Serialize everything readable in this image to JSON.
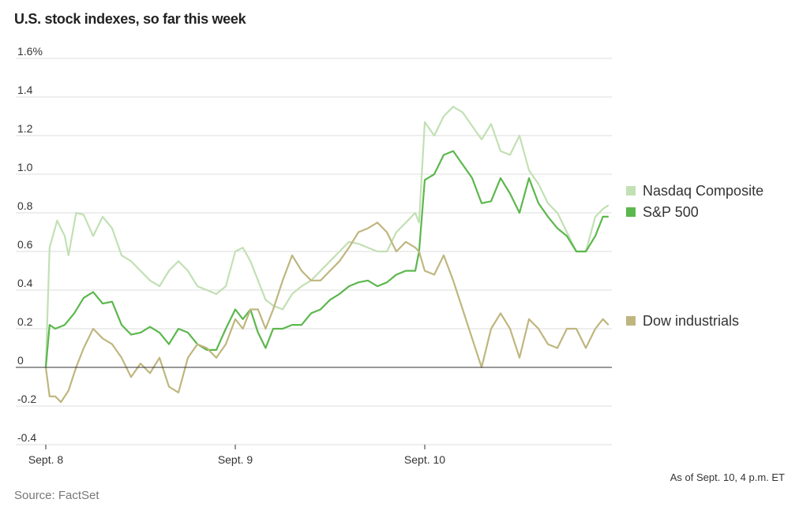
{
  "chart_data": {
    "type": "line",
    "title": "U.S. stock indexes, so far this week",
    "y_unit": "%",
    "ylim": [
      -0.4,
      1.6
    ],
    "y_ticks": [
      -0.4,
      -0.2,
      0,
      0.2,
      0.4,
      0.6,
      0.8,
      1.0,
      1.2,
      1.4,
      1.6
    ],
    "y_tick_labels": [
      "-0.4",
      "-0.2",
      "0",
      "0.2",
      "0.4",
      "0.6",
      "0.8",
      "1.0",
      "1.2",
      "1.4",
      "1.6%"
    ],
    "x_tick_labels": [
      "Sept. 8",
      "Sept. 9",
      "Sept. 10"
    ],
    "x_range_days": [
      0,
      3
    ],
    "legend_placement": "right",
    "series": [
      {
        "name": "Nasdaq Composite",
        "color": "#c2e0b4",
        "points": [
          [
            0.0,
            0.0
          ],
          [
            0.02,
            0.62
          ],
          [
            0.06,
            0.76
          ],
          [
            0.1,
            0.68
          ],
          [
            0.12,
            0.58
          ],
          [
            0.16,
            0.8
          ],
          [
            0.2,
            0.79
          ],
          [
            0.25,
            0.68
          ],
          [
            0.3,
            0.78
          ],
          [
            0.35,
            0.72
          ],
          [
            0.4,
            0.58
          ],
          [
            0.45,
            0.55
          ],
          [
            0.5,
            0.5
          ],
          [
            0.55,
            0.45
          ],
          [
            0.6,
            0.42
          ],
          [
            0.65,
            0.5
          ],
          [
            0.7,
            0.55
          ],
          [
            0.75,
            0.5
          ],
          [
            0.8,
            0.42
          ],
          [
            0.85,
            0.4
          ],
          [
            0.9,
            0.38
          ],
          [
            0.95,
            0.42
          ],
          [
            1.0,
            0.6
          ],
          [
            1.04,
            0.62
          ],
          [
            1.08,
            0.55
          ],
          [
            1.12,
            0.45
          ],
          [
            1.16,
            0.35
          ],
          [
            1.2,
            0.32
          ],
          [
            1.25,
            0.3
          ],
          [
            1.3,
            0.38
          ],
          [
            1.35,
            0.42
          ],
          [
            1.4,
            0.45
          ],
          [
            1.45,
            0.5
          ],
          [
            1.5,
            0.55
          ],
          [
            1.55,
            0.6
          ],
          [
            1.6,
            0.65
          ],
          [
            1.65,
            0.64
          ],
          [
            1.7,
            0.62
          ],
          [
            1.75,
            0.6
          ],
          [
            1.8,
            0.6
          ],
          [
            1.85,
            0.7
          ],
          [
            1.9,
            0.75
          ],
          [
            1.95,
            0.8
          ],
          [
            1.97,
            0.75
          ],
          [
            2.0,
            1.27
          ],
          [
            2.05,
            1.2
          ],
          [
            2.1,
            1.3
          ],
          [
            2.15,
            1.35
          ],
          [
            2.2,
            1.32
          ],
          [
            2.25,
            1.25
          ],
          [
            2.3,
            1.18
          ],
          [
            2.35,
            1.26
          ],
          [
            2.4,
            1.12
          ],
          [
            2.45,
            1.1
          ],
          [
            2.5,
            1.2
          ],
          [
            2.55,
            1.02
          ],
          [
            2.6,
            0.95
          ],
          [
            2.65,
            0.85
          ],
          [
            2.7,
            0.8
          ],
          [
            2.75,
            0.7
          ],
          [
            2.8,
            0.6
          ],
          [
            2.85,
            0.6
          ],
          [
            2.9,
            0.78
          ],
          [
            2.94,
            0.82
          ],
          [
            2.97,
            0.84
          ]
        ]
      },
      {
        "name": "S&P 500",
        "color": "#5cb74d",
        "points": [
          [
            0.0,
            0.0
          ],
          [
            0.02,
            0.22
          ],
          [
            0.05,
            0.2
          ],
          [
            0.1,
            0.22
          ],
          [
            0.15,
            0.28
          ],
          [
            0.2,
            0.36
          ],
          [
            0.25,
            0.39
          ],
          [
            0.3,
            0.33
          ],
          [
            0.35,
            0.34
          ],
          [
            0.4,
            0.22
          ],
          [
            0.45,
            0.17
          ],
          [
            0.5,
            0.18
          ],
          [
            0.55,
            0.21
          ],
          [
            0.6,
            0.18
          ],
          [
            0.65,
            0.12
          ],
          [
            0.7,
            0.2
          ],
          [
            0.75,
            0.18
          ],
          [
            0.8,
            0.12
          ],
          [
            0.85,
            0.09
          ],
          [
            0.9,
            0.09
          ],
          [
            0.95,
            0.2
          ],
          [
            1.0,
            0.3
          ],
          [
            1.04,
            0.25
          ],
          [
            1.08,
            0.3
          ],
          [
            1.12,
            0.18
          ],
          [
            1.16,
            0.1
          ],
          [
            1.2,
            0.2
          ],
          [
            1.25,
            0.2
          ],
          [
            1.3,
            0.22
          ],
          [
            1.35,
            0.22
          ],
          [
            1.4,
            0.28
          ],
          [
            1.45,
            0.3
          ],
          [
            1.5,
            0.35
          ],
          [
            1.55,
            0.38
          ],
          [
            1.6,
            0.42
          ],
          [
            1.65,
            0.44
          ],
          [
            1.7,
            0.45
          ],
          [
            1.75,
            0.42
          ],
          [
            1.8,
            0.44
          ],
          [
            1.85,
            0.48
          ],
          [
            1.9,
            0.5
          ],
          [
            1.95,
            0.5
          ],
          [
            1.97,
            0.6
          ],
          [
            2.0,
            0.97
          ],
          [
            2.05,
            1.0
          ],
          [
            2.1,
            1.1
          ],
          [
            2.15,
            1.12
          ],
          [
            2.2,
            1.05
          ],
          [
            2.25,
            0.98
          ],
          [
            2.3,
            0.85
          ],
          [
            2.35,
            0.86
          ],
          [
            2.4,
            0.98
          ],
          [
            2.45,
            0.9
          ],
          [
            2.5,
            0.8
          ],
          [
            2.55,
            0.98
          ],
          [
            2.6,
            0.85
          ],
          [
            2.65,
            0.78
          ],
          [
            2.7,
            0.72
          ],
          [
            2.75,
            0.68
          ],
          [
            2.8,
            0.6
          ],
          [
            2.85,
            0.6
          ],
          [
            2.9,
            0.68
          ],
          [
            2.94,
            0.78
          ],
          [
            2.97,
            0.78
          ]
        ]
      },
      {
        "name": "Dow industrials",
        "color": "#bfb67f",
        "points": [
          [
            0.0,
            0.0
          ],
          [
            0.02,
            -0.15
          ],
          [
            0.05,
            -0.15
          ],
          [
            0.08,
            -0.18
          ],
          [
            0.12,
            -0.12
          ],
          [
            0.16,
            0.0
          ],
          [
            0.2,
            0.1
          ],
          [
            0.25,
            0.2
          ],
          [
            0.3,
            0.15
          ],
          [
            0.35,
            0.12
          ],
          [
            0.4,
            0.05
          ],
          [
            0.45,
            -0.05
          ],
          [
            0.5,
            0.02
          ],
          [
            0.55,
            -0.03
          ],
          [
            0.6,
            0.05
          ],
          [
            0.65,
            -0.1
          ],
          [
            0.7,
            -0.13
          ],
          [
            0.75,
            0.05
          ],
          [
            0.8,
            0.12
          ],
          [
            0.85,
            0.1
          ],
          [
            0.9,
            0.05
          ],
          [
            0.95,
            0.12
          ],
          [
            1.0,
            0.25
          ],
          [
            1.04,
            0.2
          ],
          [
            1.08,
            0.3
          ],
          [
            1.12,
            0.3
          ],
          [
            1.16,
            0.2
          ],
          [
            1.2,
            0.3
          ],
          [
            1.25,
            0.45
          ],
          [
            1.3,
            0.58
          ],
          [
            1.35,
            0.5
          ],
          [
            1.4,
            0.45
          ],
          [
            1.45,
            0.45
          ],
          [
            1.5,
            0.5
          ],
          [
            1.55,
            0.55
          ],
          [
            1.6,
            0.62
          ],
          [
            1.65,
            0.7
          ],
          [
            1.7,
            0.72
          ],
          [
            1.75,
            0.75
          ],
          [
            1.8,
            0.7
          ],
          [
            1.85,
            0.6
          ],
          [
            1.9,
            0.65
          ],
          [
            1.95,
            0.62
          ],
          [
            1.97,
            0.6
          ],
          [
            2.0,
            0.5
          ],
          [
            2.05,
            0.48
          ],
          [
            2.1,
            0.58
          ],
          [
            2.15,
            0.45
          ],
          [
            2.2,
            0.3
          ],
          [
            2.25,
            0.15
          ],
          [
            2.3,
            0.0
          ],
          [
            2.35,
            0.2
          ],
          [
            2.4,
            0.28
          ],
          [
            2.45,
            0.2
          ],
          [
            2.5,
            0.05
          ],
          [
            2.55,
            0.25
          ],
          [
            2.6,
            0.2
          ],
          [
            2.65,
            0.12
          ],
          [
            2.7,
            0.1
          ],
          [
            2.75,
            0.2
          ],
          [
            2.8,
            0.2
          ],
          [
            2.85,
            0.1
          ],
          [
            2.9,
            0.2
          ],
          [
            2.94,
            0.25
          ],
          [
            2.97,
            0.22
          ]
        ]
      }
    ],
    "grid": true,
    "zero_line": true
  },
  "title": "U.S. stock indexes, so far this week",
  "note": "As of Sept. 10, 4 p.m. ET",
  "source": "Source: FactSet"
}
